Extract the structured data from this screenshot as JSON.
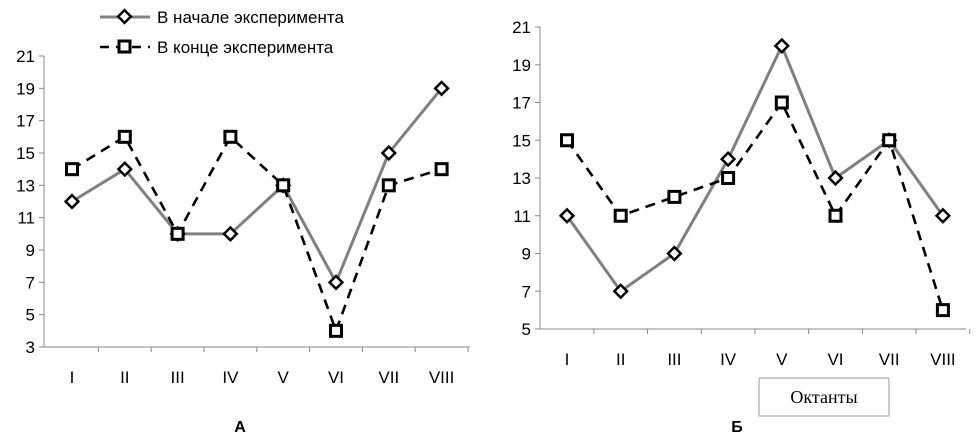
{
  "legend": {
    "series_start": "В начале эксперимента",
    "series_end": "В конце эксперимента"
  },
  "chart_data": [
    {
      "type": "line",
      "panel_label": "А",
      "xlabel": "",
      "ylabel": "",
      "categories": [
        "I",
        "II",
        "III",
        "IV",
        "V",
        "VI",
        "VII",
        "VIII"
      ],
      "yticks": [
        3,
        5,
        7,
        9,
        11,
        13,
        15,
        17,
        19,
        21
      ],
      "ylim": [
        3,
        21
      ],
      "grid": false,
      "legend_position": "top",
      "series": [
        {
          "name": "В начале эксперимента",
          "values": [
            12,
            14,
            10,
            10,
            13,
            7,
            15,
            19
          ],
          "color": "#808080",
          "style": "solid",
          "marker": "diamond"
        },
        {
          "name": "В конце эксперимента",
          "values": [
            14,
            16,
            10,
            16,
            13,
            4,
            13,
            14
          ],
          "color": "#000000",
          "style": "dashed",
          "marker": "square"
        }
      ]
    },
    {
      "type": "line",
      "panel_label": "Б",
      "xlabel": "Октанты",
      "ylabel": "",
      "categories": [
        "I",
        "II",
        "III",
        "IV",
        "V",
        "VI",
        "VII",
        "VIII"
      ],
      "yticks": [
        5,
        7,
        9,
        11,
        13,
        15,
        17,
        19,
        21
      ],
      "ylim": [
        5,
        21
      ],
      "grid": false,
      "series": [
        {
          "name": "В начале эксперимента",
          "values": [
            11,
            7,
            9,
            14,
            20,
            13,
            15,
            11
          ],
          "color": "#808080",
          "style": "solid",
          "marker": "diamond"
        },
        {
          "name": "В конце эксперимента",
          "values": [
            15,
            11,
            12,
            13,
            17,
            11,
            15,
            6
          ],
          "color": "#000000",
          "style": "dashed",
          "marker": "square"
        }
      ]
    }
  ]
}
